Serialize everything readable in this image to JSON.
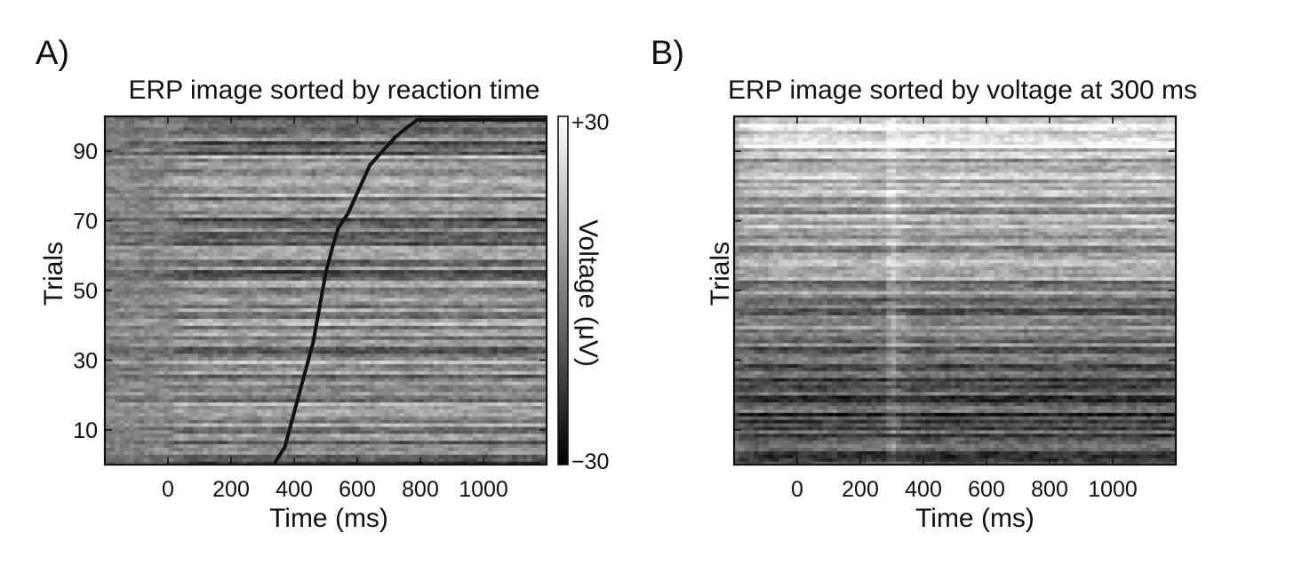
{
  "chart_data": [
    {
      "type": "heatmap",
      "panel_label": "A)",
      "title": "ERP image sorted by reaction time",
      "xlabel": "Time (ms)",
      "ylabel": "Trials",
      "xlim": [
        -200,
        1200
      ],
      "ylim": [
        0,
        100
      ],
      "xticks": [
        0,
        200,
        400,
        600,
        800,
        1000
      ],
      "yticks": [
        10,
        30,
        50,
        70,
        90
      ],
      "colorbar": {
        "label": "Voltage (μV)",
        "min_label": "−30",
        "max_label": "+30",
        "range": [
          -30,
          30
        ]
      },
      "rt_curve": {
        "x": [
          335,
          370,
          400,
          430,
          460,
          480,
          500,
          520,
          540,
          570,
          600,
          620,
          640,
          680,
          720,
          760,
          790
        ],
        "y": [
          0,
          5,
          15,
          25,
          35,
          45,
          55,
          62,
          68,
          72,
          78,
          82,
          86,
          90,
          94,
          97,
          99
        ]
      }
    },
    {
      "type": "heatmap",
      "panel_label": "B)",
      "title": "ERP image sorted by voltage at 300 ms",
      "xlabel": "Time (ms)",
      "ylabel": "Trials",
      "xlim": [
        -200,
        1200
      ],
      "ylim": [
        0,
        100
      ],
      "xticks": [
        0,
        200,
        400,
        600,
        800,
        1000
      ],
      "yticks": [
        10,
        30,
        50,
        70,
        90
      ],
      "ytick_labels_shown": false,
      "sort_marker_ms": 300
    }
  ]
}
